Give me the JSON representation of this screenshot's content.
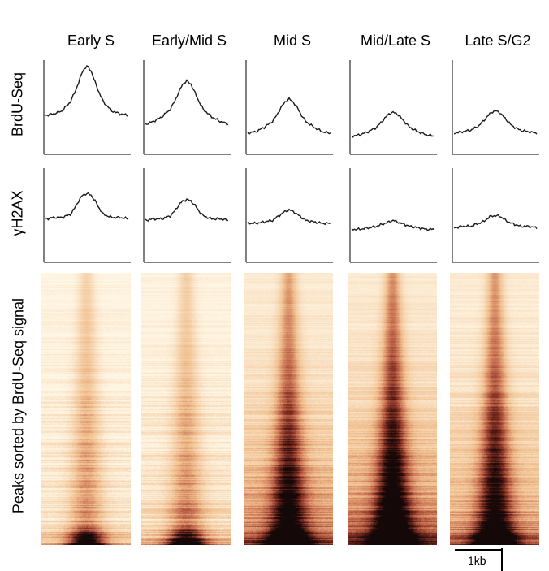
{
  "columns": [
    "Early S",
    "Early/Mid S",
    "Mid S",
    "Mid/Late S",
    "Late S/G2"
  ],
  "row_labels": {
    "brdu": "BrdU-Seq",
    "h2ax": "γH2AX",
    "heatmap": "Peaks sorted by BrdU-Seq signal"
  },
  "scale_bar": "1kb",
  "chart_data": [
    {
      "type": "line",
      "row": "BrdU-Seq",
      "xlim": [
        -1,
        1
      ],
      "ylim": [
        0,
        6
      ],
      "x": [
        -1.0,
        -0.8,
        -0.6,
        -0.4,
        -0.3,
        -0.2,
        -0.1,
        0.0,
        0.1,
        0.2,
        0.3,
        0.4,
        0.6,
        0.8,
        1.0
      ],
      "series": [
        {
          "values": [
            2.4,
            2.5,
            2.7,
            3.3,
            3.9,
            4.6,
            5.4,
            5.7,
            5.4,
            4.6,
            3.9,
            3.3,
            2.7,
            2.5,
            2.4
          ]
        },
        {
          "values": [
            1.8,
            2.0,
            2.3,
            2.8,
            3.3,
            3.9,
            4.5,
            4.7,
            4.5,
            3.9,
            3.3,
            2.8,
            2.3,
            2.0,
            1.8
          ]
        },
        {
          "values": [
            1.2,
            1.3,
            1.6,
            2.0,
            2.4,
            2.9,
            3.3,
            3.5,
            3.3,
            2.9,
            2.4,
            2.0,
            1.6,
            1.3,
            1.2
          ]
        },
        {
          "values": [
            1.0,
            1.1,
            1.3,
            1.6,
            1.9,
            2.2,
            2.5,
            2.6,
            2.5,
            2.2,
            1.9,
            1.6,
            1.3,
            1.1,
            1.0
          ]
        },
        {
          "values": [
            1.2,
            1.3,
            1.4,
            1.7,
            2.0,
            2.3,
            2.6,
            2.7,
            2.6,
            2.3,
            2.0,
            1.7,
            1.4,
            1.3,
            1.2
          ]
        }
      ]
    },
    {
      "type": "line",
      "row": "γH2AX",
      "xlim": [
        -1,
        1
      ],
      "ylim": [
        0,
        6
      ],
      "x": [
        -1.0,
        -0.8,
        -0.6,
        -0.4,
        -0.3,
        -0.2,
        -0.1,
        0.0,
        0.1,
        0.2,
        0.3,
        0.4,
        0.6,
        0.8,
        1.0
      ],
      "series": [
        {
          "values": [
            2.7,
            2.8,
            2.8,
            3.0,
            3.4,
            3.9,
            4.3,
            4.4,
            4.3,
            3.9,
            3.4,
            3.0,
            2.8,
            2.8,
            2.7
          ]
        },
        {
          "values": [
            2.6,
            2.7,
            2.7,
            2.9,
            3.2,
            3.6,
            3.9,
            4.0,
            3.9,
            3.6,
            3.2,
            2.9,
            2.7,
            2.7,
            2.6
          ]
        },
        {
          "values": [
            2.4,
            2.4,
            2.5,
            2.6,
            2.8,
            3.0,
            3.2,
            3.3,
            3.2,
            3.0,
            2.8,
            2.6,
            2.5,
            2.4,
            2.4
          ]
        },
        {
          "values": [
            2.0,
            2.0,
            2.1,
            2.2,
            2.3,
            2.4,
            2.5,
            2.6,
            2.5,
            2.4,
            2.3,
            2.2,
            2.1,
            2.0,
            2.0
          ]
        },
        {
          "values": [
            2.1,
            2.2,
            2.2,
            2.4,
            2.5,
            2.7,
            2.9,
            2.9,
            2.9,
            2.7,
            2.5,
            2.4,
            2.2,
            2.2,
            2.1
          ]
        }
      ]
    },
    {
      "type": "heatmap",
      "row": "Peaks sorted by BrdU-Seq signal",
      "xlim": [
        -1,
        1
      ],
      "panels": [
        {
          "center_intensity": 0.35,
          "bottom_intensity": 0.9,
          "background": 0.08
        },
        {
          "center_intensity": 0.35,
          "bottom_intensity": 0.9,
          "background": 0.1
        },
        {
          "center_intensity": 0.6,
          "bottom_intensity": 1.0,
          "background": 0.35
        },
        {
          "center_intensity": 0.7,
          "bottom_intensity": 1.0,
          "background": 0.4
        },
        {
          "center_intensity": 0.65,
          "bottom_intensity": 1.0,
          "background": 0.3
        }
      ]
    }
  ]
}
